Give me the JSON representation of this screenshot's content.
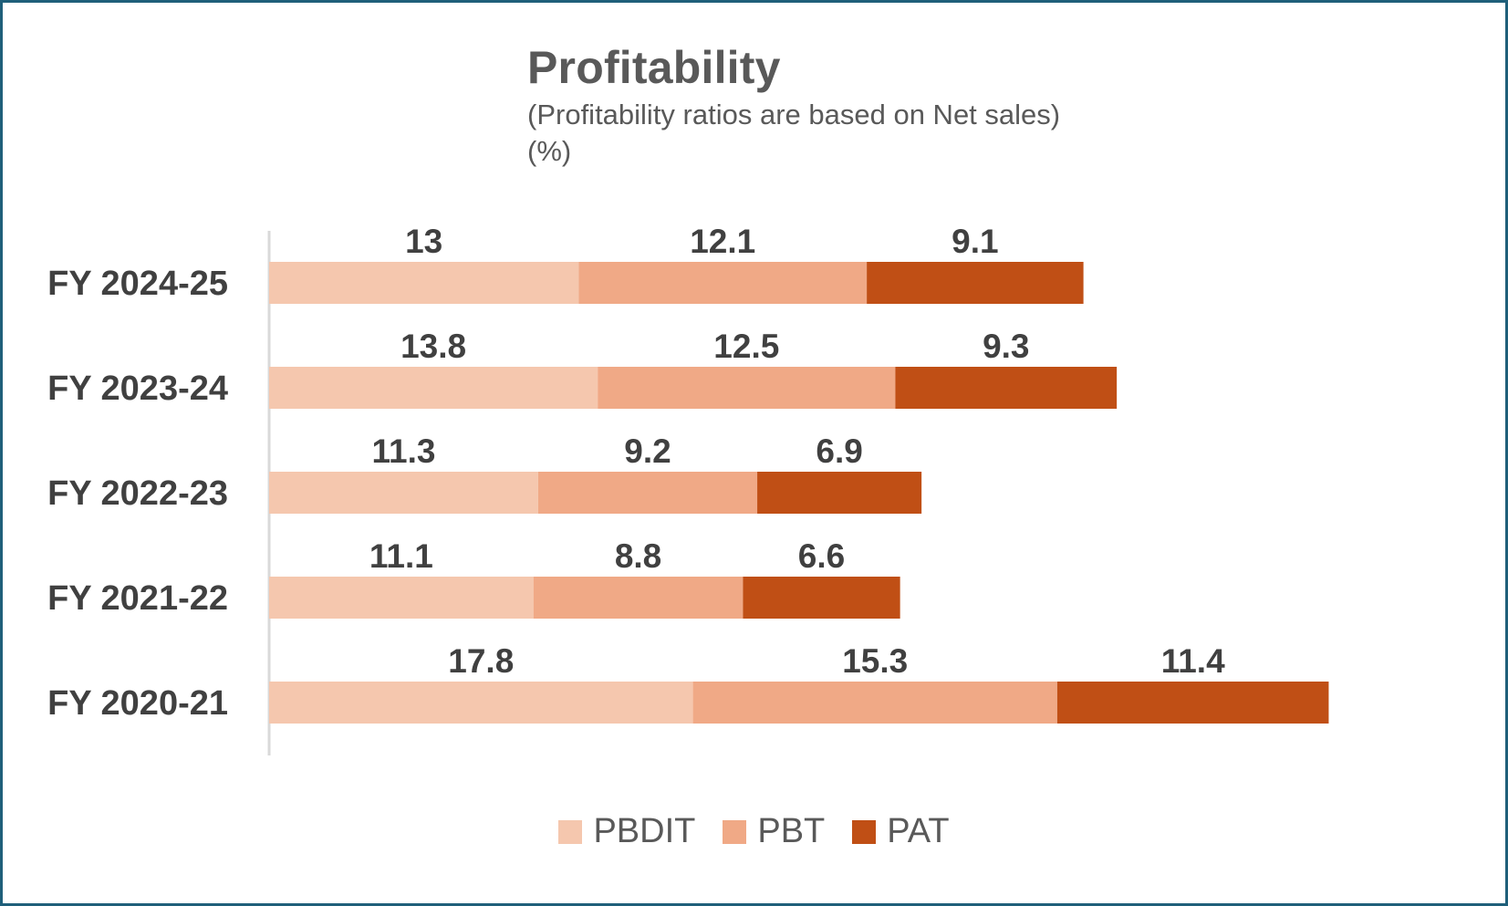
{
  "chart_data": {
    "type": "bar",
    "orientation": "horizontal",
    "stacked": true,
    "title": "Profitability",
    "subtitle": "(Profitability ratios are based on Net sales)",
    "unit": "(%)",
    "categories": [
      "FY 2024-25",
      "FY 2023-24",
      "FY 2022-23",
      "FY 2021-22",
      "FY 2020-21"
    ],
    "series": [
      {
        "name": "PBDIT",
        "color": "#f5c7ae",
        "values": [
          13,
          13.8,
          11.3,
          11.1,
          17.8
        ]
      },
      {
        "name": "PBT",
        "color": "#f0a986",
        "values": [
          12.1,
          12.5,
          9.2,
          8.8,
          15.3
        ]
      },
      {
        "name": "PAT",
        "color": "#c04f15",
        "values": [
          9.1,
          9.3,
          6.9,
          6.6,
          11.4
        ]
      }
    ],
    "xlim": [
      0,
      50
    ],
    "grid": false,
    "legend_position": "bottom"
  }
}
